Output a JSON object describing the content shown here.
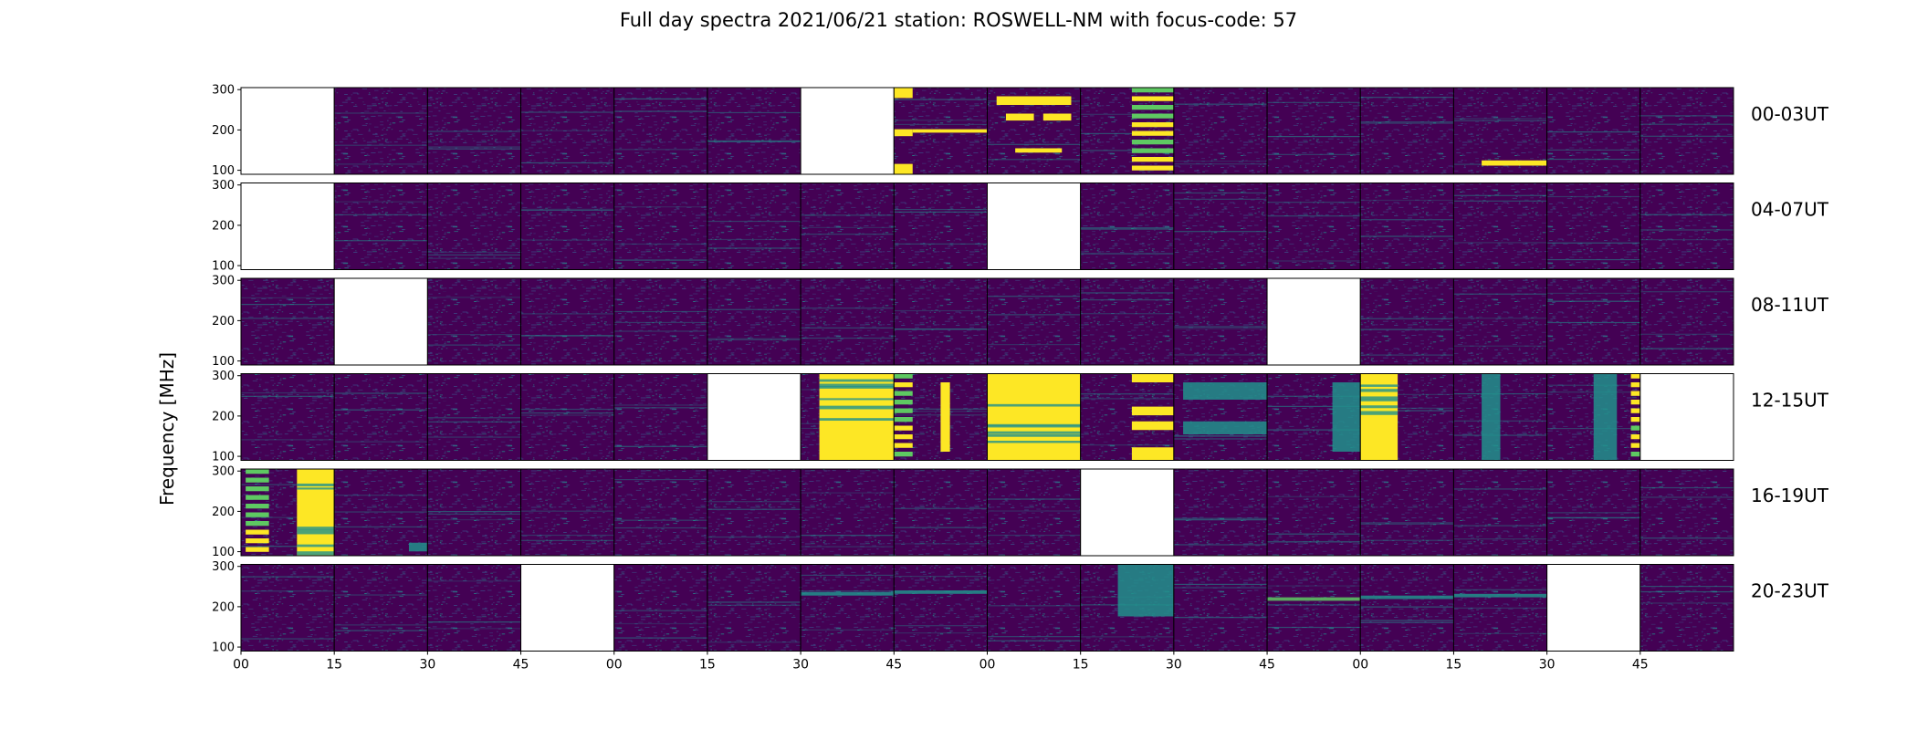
{
  "figure": {
    "title": "Full day spectra 2021/06/21 station: ROSWELL-NM with focus-code: 57",
    "ylabel": "Frequency [MHz]"
  },
  "colors": {
    "background_low": "#440154",
    "mid": "#3b528b",
    "teal": "#21918c",
    "green": "#5ec962",
    "high": "#fde725",
    "missing": "#ffffff"
  },
  "chart_data": {
    "type": "heatmap",
    "colormap": "viridis",
    "ylabel": "Frequency [MHz]",
    "ylim": [
      90,
      305
    ],
    "yticks": [
      100,
      200,
      300
    ],
    "panels_per_row": 16,
    "panel_minutes": 15,
    "xtick_labels": [
      "00",
      "15",
      "30",
      "45",
      "00",
      "15",
      "30",
      "45",
      "00",
      "15",
      "30",
      "45",
      "00",
      "15",
      "30",
      "45"
    ],
    "rows": [
      {
        "label": "00-03UT",
        "panels": [
          "missing",
          "quiet",
          "quiet",
          "quiet",
          "quiet",
          "quiet",
          "missing",
          "bursty",
          "bursty",
          "banded",
          "quiet",
          "quiet",
          "quiet",
          "quiet",
          "quiet",
          "quiet"
        ],
        "features": {
          "7": [
            [
              0.0,
              0.2,
              0.0,
              0.12
            ],
            [
              0.0,
              0.2,
              0.48,
              0.56
            ],
            [
              0.0,
              0.2,
              0.88,
              1.0
            ],
            [
              0.2,
              1.0,
              0.48,
              0.52
            ]
          ],
          "8": [
            [
              0.1,
              0.9,
              0.1,
              0.2
            ],
            [
              0.2,
              0.5,
              0.3,
              0.38
            ],
            [
              0.6,
              0.9,
              0.3,
              0.38
            ],
            [
              0.3,
              0.8,
              0.7,
              0.75
            ]
          ],
          "9": [
            [
              0.55,
              1.0,
              0.0,
              1.0,
              "stripes"
            ]
          ],
          "13": [
            [
              0.3,
              1.0,
              0.84,
              0.9
            ]
          ]
        }
      },
      {
        "label": "04-07UT",
        "panels": [
          "missing",
          "quiet",
          "quiet",
          "quiet",
          "quiet",
          "quiet",
          "quiet",
          "quiet",
          "missing",
          "quiet",
          "quiet",
          "quiet",
          "quiet",
          "quiet",
          "quiet",
          "quiet"
        ],
        "features": {}
      },
      {
        "label": "08-11UT",
        "panels": [
          "quiet",
          "missing",
          "quiet",
          "quiet",
          "quiet",
          "quiet",
          "quiet",
          "quiet",
          "quiet",
          "quiet",
          "quiet",
          "missing",
          "quiet",
          "quiet",
          "quiet",
          "quiet"
        ],
        "features": {}
      },
      {
        "label": "12-15UT",
        "panels": [
          "quiet",
          "quiet",
          "quiet",
          "quiet",
          "quiet",
          "missing",
          "saturated",
          "bursty",
          "saturated",
          "banded",
          "banded",
          "bursty",
          "saturated",
          "bursty",
          "bursty",
          "missing"
        ],
        "features": {
          "6": [
            [
              0.2,
              1.0,
              0.0,
              1.0,
              "fill"
            ]
          ],
          "7": [
            [
              0.0,
              0.2,
              0.0,
              1.0,
              "stripes"
            ],
            [
              0.5,
              0.6,
              0.1,
              0.9
            ]
          ],
          "8": [
            [
              0.0,
              1.0,
              0.0,
              1.0,
              "fill"
            ]
          ],
          "9": [
            [
              0.55,
              1.0,
              0.0,
              0.1
            ],
            [
              0.55,
              1.0,
              0.38,
              0.48
            ],
            [
              0.55,
              1.0,
              0.85,
              1.0
            ],
            [
              0.55,
              1.0,
              0.55,
              0.65
            ]
          ],
          "10": [
            [
              0.1,
              1.0,
              0.1,
              0.3,
              "teal"
            ],
            [
              0.1,
              1.0,
              0.55,
              0.7,
              "teal"
            ]
          ],
          "11": [
            [
              0.7,
              1.0,
              0.1,
              0.9,
              "teal"
            ]
          ],
          "12": [
            [
              0.0,
              0.4,
              0.0,
              1.0,
              "fill"
            ]
          ],
          "13": [
            [
              0.3,
              0.5,
              0.0,
              1.0,
              "teal"
            ]
          ],
          "14": [
            [
              0.5,
              0.75,
              0.0,
              1.0,
              "teal"
            ],
            [
              0.9,
              1.0,
              0.0,
              1.0,
              "stripes"
            ]
          ]
        }
      },
      {
        "label": "16-19UT",
        "panels": [
          "bursty",
          "quiet",
          "quiet",
          "quiet",
          "quiet",
          "quiet",
          "quiet",
          "quiet",
          "quiet",
          "missing",
          "quiet",
          "quiet",
          "quiet",
          "quiet",
          "quiet",
          "quiet"
        ],
        "features": {
          "0": [
            [
              0.05,
              0.3,
              0.0,
              1.0,
              "stripes"
            ],
            [
              0.6,
              1.0,
              0.0,
              1.0,
              "fill"
            ]
          ],
          "1": [
            [
              0.8,
              1.0,
              0.85,
              0.95,
              "teal"
            ]
          ]
        }
      },
      {
        "label": "20-23UT",
        "panels": [
          "quiet",
          "quiet",
          "quiet",
          "missing",
          "quiet",
          "quiet",
          "quiet",
          "quiet",
          "quiet",
          "banded",
          "quiet",
          "quiet",
          "quiet",
          "quiet",
          "missing",
          "quiet"
        ],
        "features": {
          "6": [
            [
              0.0,
              1.0,
              0.32,
              0.36,
              "teal"
            ]
          ],
          "7": [
            [
              0.0,
              1.0,
              0.3,
              0.34,
              "teal"
            ]
          ],
          "9": [
            [
              0.4,
              1.0,
              0.0,
              0.6,
              "teal"
            ]
          ],
          "11": [
            [
              0.0,
              1.0,
              0.38,
              0.42,
              "green"
            ]
          ],
          "12": [
            [
              0.0,
              1.0,
              0.36,
              0.4,
              "teal"
            ]
          ],
          "13": [
            [
              0.0,
              1.0,
              0.34,
              0.38,
              "teal"
            ]
          ]
        }
      }
    ]
  }
}
